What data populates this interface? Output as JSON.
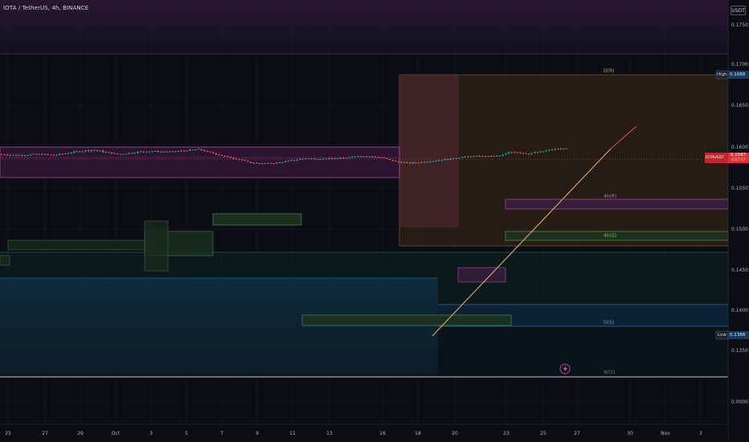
{
  "header": {
    "symbol_line": "IOTA / TetherUS, 4h, BINANCE"
  },
  "price_scale": {
    "currency": "USDT",
    "ticks": [
      "0.1750",
      "0.1700",
      "0.1650",
      "0.1600",
      "0.1550",
      "0.1500",
      "0.1450",
      "0.1400",
      "0.1350",
      "0.0000"
    ]
  },
  "time_scale": {
    "ticks": [
      "25",
      "27",
      "29",
      "Oct",
      "3",
      "5",
      "7",
      "9",
      "11",
      "13",
      "16",
      "18",
      "20",
      "23",
      "25",
      "27",
      "30",
      "Nov",
      "3"
    ]
  },
  "markers": {
    "high_label": "High",
    "high_value": "0.1688",
    "low_label": "Low",
    "low_value": "0.1388",
    "last_price_symbol": "IOTAUSDT",
    "last_price_value": "0.1587",
    "last_price_time": "4:57:17"
  },
  "zone_labels": {
    "top": "D(R)",
    "mid_resistance": "4h(R)",
    "mid_support": "4h(S)",
    "daily_support": "D(S)",
    "weekly_support": "W(S)"
  },
  "colors": {
    "bull": "#26a69a",
    "bear": "#ef5350",
    "grid": "#1c1f2a",
    "background": "#0c0c14"
  },
  "chart_data": {
    "type": "candlestick",
    "symbol": "IOTA / TetherUS",
    "interval": "4h",
    "exchange": "BINANCE",
    "x_tick_labels": [
      "25",
      "27",
      "29",
      "Oct",
      "3",
      "5",
      "7",
      "9",
      "11",
      "13",
      "16",
      "18",
      "20",
      "23",
      "25",
      "27",
      "30",
      "Nov",
      "3"
    ],
    "y_tick_labels": [
      "0.1750",
      "0.1700",
      "0.1650",
      "0.1600",
      "0.1550",
      "0.1500",
      "0.1450",
      "0.1400",
      "0.1350",
      "0.0000"
    ],
    "session_high": 0.1688,
    "session_low": 0.1388,
    "last_price": 0.1587,
    "path": [
      [
        0.1525,
        0.1501
      ],
      [
        0.1514,
        0.1491
      ],
      [
        0.1517,
        0.1496
      ],
      [
        0.1521,
        0.1503
      ],
      [
        0.1511,
        0.1492
      ],
      [
        0.1535,
        0.1519
      ],
      [
        0.1562,
        0.1538
      ],
      [
        0.158,
        0.155
      ],
      [
        0.1546,
        0.1523
      ],
      [
        0.1519,
        0.1505
      ],
      [
        0.1543,
        0.1522
      ],
      [
        0.1563,
        0.1537
      ],
      [
        0.1554,
        0.1538
      ],
      [
        0.1551,
        0.1534
      ],
      [
        0.1568,
        0.1549
      ],
      [
        0.1582,
        0.1565
      ],
      [
        0.1541,
        0.1522
      ],
      [
        0.1495,
        0.1475
      ],
      [
        0.1464,
        0.1444
      ],
      [
        0.1418,
        0.14
      ],
      [
        0.1405,
        0.1392
      ],
      [
        0.1417,
        0.14
      ],
      [
        0.1444,
        0.1425
      ],
      [
        0.1474,
        0.145
      ],
      [
        0.1466,
        0.145
      ],
      [
        0.1467,
        0.1451
      ],
      [
        0.1473,
        0.1457
      ],
      [
        0.1501,
        0.1488
      ],
      [
        0.1494,
        0.1477
      ],
      [
        0.1479,
        0.1465
      ],
      [
        0.1433,
        0.1414
      ],
      [
        0.1414,
        0.1393
      ],
      [
        0.1427,
        0.1407
      ],
      [
        0.1443,
        0.1429
      ],
      [
        0.1462,
        0.1441
      ],
      [
        0.1486,
        0.1469
      ],
      [
        0.1496,
        0.148
      ],
      [
        0.1493,
        0.1478
      ],
      [
        0.1504,
        0.1486
      ],
      [
        0.1571,
        0.1526
      ],
      [
        0.1533,
        0.1508
      ],
      [
        0.155,
        0.1528
      ],
      [
        0.1584,
        0.1566
      ],
      [
        0.1588,
        0.1576
      ]
    ]
  }
}
